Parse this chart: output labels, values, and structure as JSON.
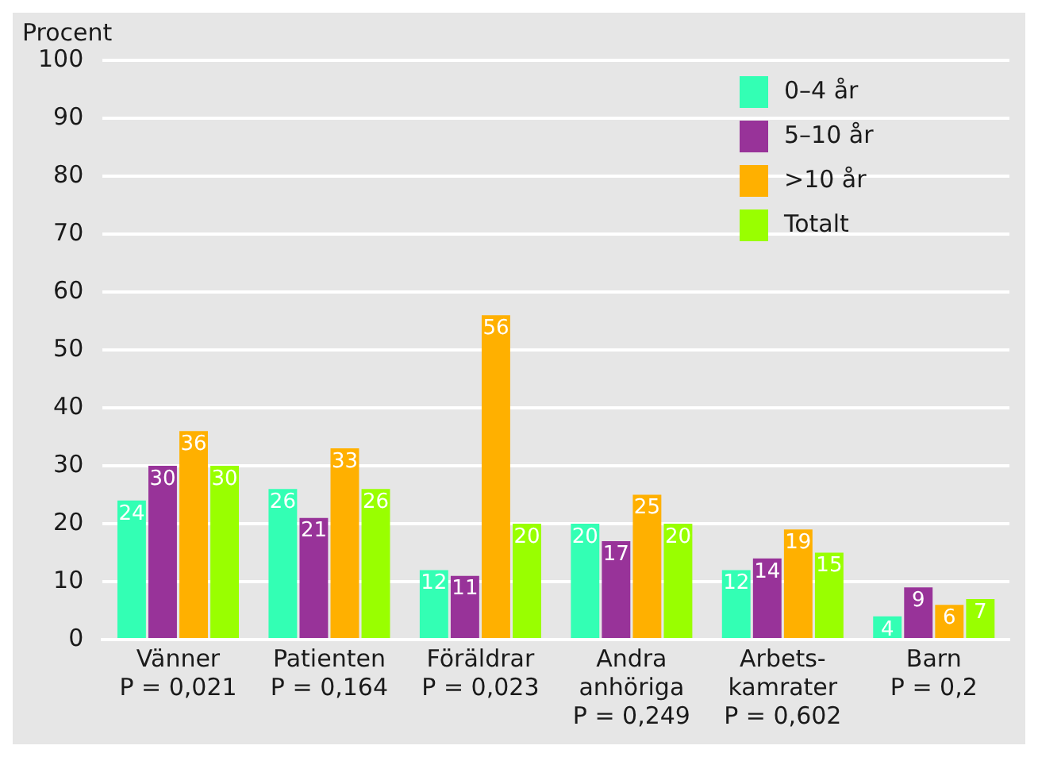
{
  "chart_data": {
    "type": "bar",
    "ylabel": "Procent",
    "categories": [
      "Vänner\nP = 0,021",
      "Patienten\nP = 0,164",
      "Föräldrar\nP = 0,023",
      "Andra\nanhöriga\nP = 0,249",
      "Arbets-\nkamrater\nP = 0,602",
      "Barn\nP = 0,2"
    ],
    "series": [
      {
        "name": "0–4 år",
        "color": "#33ffb4",
        "values": [
          24,
          26,
          12,
          20,
          12,
          4
        ]
      },
      {
        "name": "5–10 år",
        "color": "#983399",
        "values": [
          30,
          21,
          11,
          17,
          14,
          9
        ]
      },
      {
        "name": ">10 år",
        "color": "#ffb000",
        "values": [
          36,
          33,
          56,
          25,
          19,
          6
        ]
      },
      {
        "name": "Totalt",
        "color": "#99ff00",
        "values": [
          30,
          26,
          20,
          20,
          15,
          7
        ]
      }
    ],
    "ylim": [
      0,
      100
    ],
    "yticks": [
      0,
      10,
      20,
      30,
      40,
      50,
      60,
      70,
      80,
      90,
      100
    ],
    "grid": "y",
    "legend": "top right",
    "data_labels": true
  }
}
